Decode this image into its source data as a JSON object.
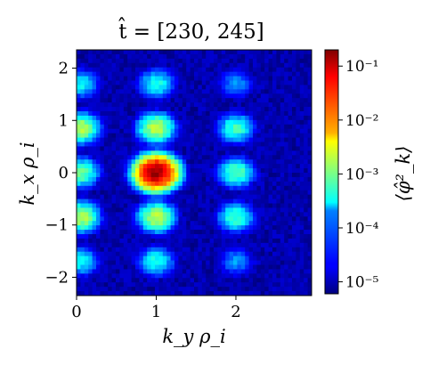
{
  "chart_data": {
    "type": "heatmap",
    "title": "t̂ = [230, 245]",
    "xlabel": "k_y ρ_i",
    "ylabel": "k_x ρ_i",
    "colorbar_label": "⟨φ̂²_k⟩",
    "xlim": [
      0,
      2.95
    ],
    "ylim": [
      -2.35,
      2.35
    ],
    "x_ticks": [
      {
        "value": 0,
        "label": "0"
      },
      {
        "value": 1,
        "label": "1"
      },
      {
        "value": 2,
        "label": "2"
      }
    ],
    "y_ticks": [
      {
        "value": 2,
        "label": "2"
      },
      {
        "value": 1,
        "label": "1"
      },
      {
        "value": 0,
        "label": "0"
      },
      {
        "value": -1,
        "label": "−1"
      },
      {
        "value": -2,
        "label": "−2"
      }
    ],
    "color_scale": "log",
    "color_range": [
      6e-06,
      0.2
    ],
    "colorbar_ticks": [
      {
        "exp": -1,
        "label": "10⁻¹"
      },
      {
        "exp": -2,
        "label": "10⁻²"
      },
      {
        "exp": -3,
        "label": "10⁻³"
      },
      {
        "exp": -4,
        "label": "10⁻⁴"
      },
      {
        "exp": -5,
        "label": "10⁻⁵"
      }
    ],
    "colormap": "jet",
    "peaks": [
      {
        "ky": 1.0,
        "kx": 0.0,
        "value": 0.15
      },
      {
        "ky": 1.0,
        "kx": 0.85,
        "value": 0.002
      },
      {
        "ky": 1.0,
        "kx": -0.85,
        "value": 0.002
      },
      {
        "ky": 1.0,
        "kx": 1.7,
        "value": 0.0004
      },
      {
        "ky": 1.0,
        "kx": -1.7,
        "value": 0.0004
      },
      {
        "ky": 0.05,
        "kx": 0.85,
        "value": 0.002
      },
      {
        "ky": 0.05,
        "kx": -0.85,
        "value": 0.002
      },
      {
        "ky": 0.05,
        "kx": 0.0,
        "value": 0.001
      },
      {
        "ky": 0.05,
        "kx": 1.7,
        "value": 0.0003
      },
      {
        "ky": 0.05,
        "kx": -1.7,
        "value": 0.0003
      },
      {
        "ky": 2.0,
        "kx": 0.0,
        "value": 0.0008
      },
      {
        "ky": 2.0,
        "kx": 0.85,
        "value": 0.0006
      },
      {
        "ky": 2.0,
        "kx": -0.85,
        "value": 0.0006
      },
      {
        "ky": 2.0,
        "kx": 1.7,
        "value": 0.0001
      },
      {
        "ky": 2.0,
        "kx": -1.7,
        "value": 0.0001
      }
    ],
    "background_value": 1e-05
  }
}
